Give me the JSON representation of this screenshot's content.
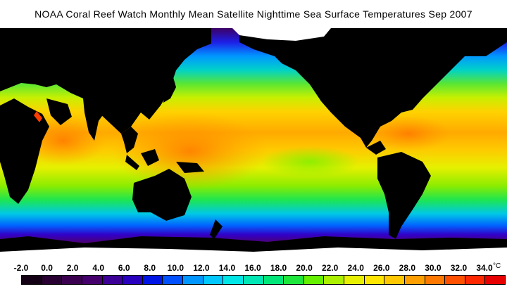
{
  "title": "NOAA Coral Reef Watch Monthly Mean Satellite Nighttime Sea Surface Temperatures     Sep 2007",
  "legend": {
    "ticks": [
      "-2.0",
      "0.0",
      "2.0",
      "4.0",
      "6.0",
      "8.0",
      "10.0",
      "12.0",
      "14.0",
      "16.0",
      "18.0",
      "20.0",
      "22.0",
      "24.0",
      "26.0",
      "28.0",
      "30.0",
      "32.0",
      "34.0"
    ],
    "unit": "°C",
    "colors": [
      "#140014",
      "#280032",
      "#3c0050",
      "#46006e",
      "#3c0096",
      "#2800be",
      "#0014e6",
      "#0050ff",
      "#0096ff",
      "#00c8ff",
      "#00e6e6",
      "#00e6b4",
      "#00e678",
      "#1ee63c",
      "#64f000",
      "#aaf000",
      "#e6f000",
      "#ffe600",
      "#ffc800",
      "#ffa000",
      "#ff7800",
      "#ff5000",
      "#ff2800",
      "#e60000"
    ]
  },
  "map": {
    "land_color": "#000000",
    "ice_color": "#ffffff"
  }
}
